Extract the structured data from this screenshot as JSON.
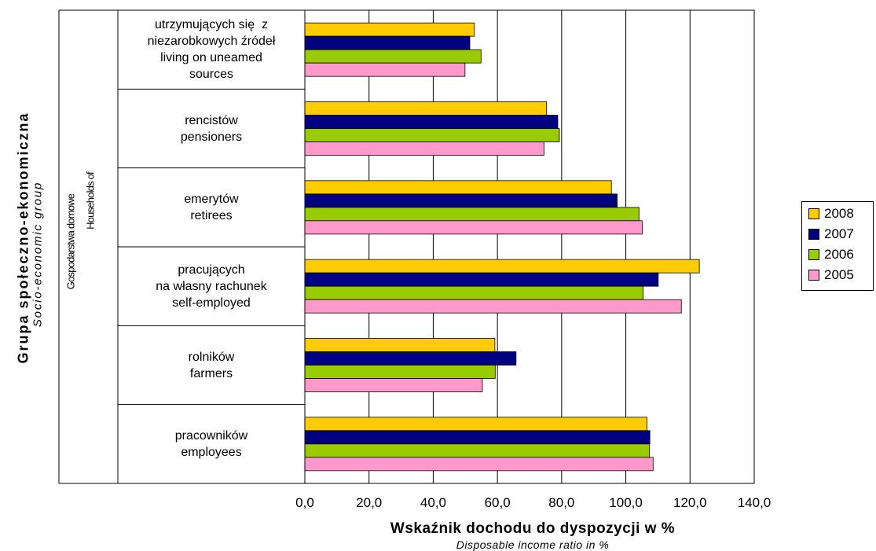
{
  "chart_data": {
    "type": "bar",
    "orientation": "horizontal",
    "categories": [
      "utrzymujących się  z\nniezarobkowych źródeł\nliving on uneamed\nsources",
      "rencistów\npensioners",
      "emerytów\nretirees",
      "pracujących\nna własny rachunek\nself-employed",
      "rolników\nfarmers",
      "pracowników\nemployees"
    ],
    "series": [
      {
        "name": "2008",
        "color": "#FFCC00",
        "values": [
          52.8,
          75.3,
          95.5,
          122.9,
          59.2,
          106.6
        ]
      },
      {
        "name": "2007",
        "color": "#000080",
        "values": [
          51.4,
          78.8,
          97.3,
          110.1,
          65.8,
          107.5
        ]
      },
      {
        "name": "2006",
        "color": "#99CC00",
        "values": [
          54.9,
          79.3,
          104.1,
          105.4,
          59.3,
          107.3
        ]
      },
      {
        "name": "2005",
        "color": "#FF99CC",
        "values": [
          49.9,
          74.5,
          105.1,
          117.3,
          55.3,
          108.5
        ]
      }
    ],
    "xlim": [
      0,
      140
    ],
    "xticks": [
      "0,0",
      "20,0",
      "40,0",
      "60,0",
      "80,0",
      "100,0",
      "120,0",
      "140,0"
    ],
    "xlabel": "Wskaźnik dochodu do dyspozycji w %",
    "xlabel_en": "Disposable income ratio in %",
    "ylabel": "Grupa społeczno-ekonomiczna",
    "ylabel_en": "Socio-economic group",
    "ylabel2": "Gospodarstwa domowe",
    "ylabel2_en": "Households of",
    "grid": true,
    "legend_position": "right"
  }
}
